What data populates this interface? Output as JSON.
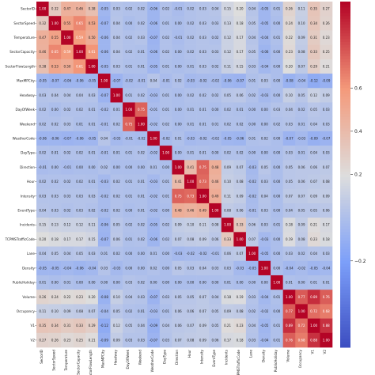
{
  "chart_data": {
    "type": "heatmap",
    "title": "",
    "xlabel": "",
    "ylabel": "",
    "row_labels": [
      "SectorID",
      "SectorSpeed",
      "Temperature",
      "SectorCapacity",
      "SectorFlowLength",
      "MaxMPCity",
      "Headway",
      "DayOfWeek",
      "Weekend",
      "WeatherCode",
      "DayType",
      "Direction",
      "Hour",
      "Intensity",
      "EventType",
      "Incidents",
      "TCPMSTrafficCode",
      "Lane",
      "Density",
      "PublicHoliday",
      "Volume",
      "Occupancy",
      "V1",
      "V2"
    ],
    "col_labels": [
      "SectorID",
      "SectorSpeed",
      "Temperature",
      "SectorCapacity",
      "SectorFlowLength",
      "MaxMPCity",
      "Headway",
      "DayOfWeek",
      "Weekend",
      "WeatherCode",
      "DayType",
      "Direction",
      "Hour",
      "Intensity",
      "EventType",
      "Incidents",
      "TCPMSTrafficCode",
      "Lane",
      "Density",
      "PublicHoliday",
      "Volume",
      "Occupancy",
      "V1",
      "V2"
    ],
    "values": [
      [
        1.0,
        0.32,
        0.47,
        0.46,
        0.38,
        -0.05,
        0.03,
        0.02,
        0.02,
        -0.06,
        0.02,
        -0.01,
        0.02,
        0.03,
        0.04,
        0.15,
        0.2,
        0.04,
        -0.05,
        0.01,
        0.26,
        0.11,
        0.35,
        0.27
      ],
      [
        0.32,
        1.0,
        0.55,
        0.65,
        0.53,
        -0.07,
        0.04,
        0.0,
        0.02,
        -0.06,
        0.01,
        0.0,
        0.02,
        0.03,
        0.03,
        0.13,
        0.18,
        0.05,
        -0.05,
        0.0,
        0.24,
        0.1,
        0.34,
        0.26
      ],
      [
        0.47,
        0.55,
        1.0,
        0.59,
        0.5,
        -0.06,
        0.04,
        0.02,
        0.03,
        -0.07,
        0.02,
        -0.01,
        0.02,
        0.03,
        0.02,
        0.12,
        0.17,
        0.04,
        -0.04,
        0.01,
        0.22,
        0.09,
        0.31,
        0.23
      ],
      [
        0.46,
        0.65,
        0.59,
        1.0,
        0.61,
        -0.06,
        0.04,
        0.02,
        0.01,
        -0.06,
        0.02,
        0.0,
        0.02,
        0.03,
        0.03,
        0.12,
        0.17,
        0.05,
        -0.06,
        0.0,
        0.23,
        0.08,
        0.33,
        0.25
      ],
      [
        0.38,
        0.53,
        0.5,
        0.61,
        1.0,
        -0.05,
        0.03,
        0.01,
        0.01,
        -0.05,
        0.01,
        0.0,
        0.01,
        0.03,
        0.02,
        0.11,
        0.15,
        0.03,
        -0.04,
        0.0,
        0.2,
        0.07,
        0.29,
        0.21
      ],
      [
        -0.05,
        -0.07,
        -0.06,
        -0.06,
        -0.05,
        1.0,
        -0.07,
        -0.02,
        -0.01,
        0.04,
        -0.01,
        0.02,
        -0.03,
        -0.02,
        -0.02,
        -0.06,
        -0.07,
        0.01,
        0.03,
        0.0,
        -0.08,
        -0.04,
        -0.12,
        -0.09
      ],
      [
        0.03,
        0.04,
        0.04,
        0.04,
        0.03,
        -0.07,
        1.0,
        0.01,
        0.02,
        -0.03,
        0.01,
        0.0,
        0.02,
        0.02,
        0.02,
        0.05,
        0.06,
        0.02,
        -0.03,
        0.0,
        0.1,
        0.05,
        0.12,
        0.09
      ],
      [
        0.02,
        0.0,
        0.02,
        0.02,
        0.01,
        -0.02,
        0.01,
        1.0,
        0.75,
        -0.01,
        0.01,
        0.0,
        0.01,
        0.01,
        0.0,
        0.02,
        0.01,
        0.0,
        0.0,
        0.03,
        0.04,
        0.02,
        0.05,
        0.03
      ],
      [
        0.02,
        0.02,
        0.03,
        0.01,
        0.01,
        -0.01,
        0.02,
        0.75,
        1.0,
        -0.02,
        0.02,
        0.0,
        0.01,
        0.01,
        0.01,
        0.02,
        0.02,
        0.0,
        0.0,
        0.02,
        0.03,
        0.01,
        0.04,
        0.03
      ],
      [
        -0.06,
        -0.06,
        -0.07,
        -0.06,
        -0.05,
        0.04,
        -0.03,
        -0.01,
        -0.02,
        1.0,
        -0.02,
        0.01,
        -0.03,
        -0.02,
        -0.02,
        -0.05,
        -0.06,
        0.01,
        0.02,
        0.0,
        -0.07,
        -0.03,
        -0.09,
        -0.07
      ],
      [
        0.02,
        0.01,
        0.02,
        0.02,
        0.01,
        -0.01,
        0.01,
        0.01,
        0.02,
        -0.02,
        1.0,
        0.0,
        0.01,
        0.01,
        0.0,
        0.02,
        0.02,
        0.0,
        0.0,
        0.0,
        0.03,
        0.01,
        0.04,
        0.03
      ],
      [
        -0.01,
        0.0,
        -0.01,
        0.0,
        0.0,
        0.02,
        0.0,
        0.0,
        0.0,
        0.01,
        0.0,
        1.0,
        0.41,
        0.75,
        0.48,
        0.09,
        0.07,
        -0.03,
        0.05,
        0.0,
        0.05,
        0.06,
        0.06,
        0.07
      ],
      [
        0.02,
        0.02,
        0.02,
        0.02,
        0.01,
        -0.03,
        0.02,
        0.01,
        0.01,
        -0.03,
        0.01,
        0.41,
        1.0,
        0.73,
        0.46,
        0.1,
        0.08,
        -0.02,
        0.03,
        0.0,
        0.05,
        0.06,
        0.07,
        0.08
      ],
      [
        0.03,
        0.03,
        0.03,
        0.03,
        0.03,
        -0.02,
        0.02,
        0.01,
        0.01,
        -0.02,
        0.01,
        0.75,
        0.73,
        1.0,
        0.49,
        0.11,
        0.09,
        -0.02,
        0.04,
        0.0,
        0.07,
        0.07,
        0.09,
        0.09
      ],
      [
        0.04,
        0.03,
        0.02,
        0.03,
        0.02,
        -0.02,
        0.02,
        0.0,
        0.01,
        -0.02,
        0.0,
        0.48,
        0.46,
        0.49,
        1.0,
        0.08,
        0.06,
        -0.01,
        0.03,
        0.0,
        0.04,
        0.05,
        0.05,
        0.06
      ],
      [
        0.15,
        0.13,
        0.12,
        0.12,
        0.11,
        -0.06,
        0.05,
        0.02,
        0.02,
        -0.05,
        0.02,
        0.09,
        0.1,
        0.11,
        0.08,
        1.0,
        0.33,
        0.06,
        0.03,
        0.01,
        0.18,
        0.09,
        0.21,
        0.17
      ],
      [
        0.2,
        0.18,
        0.17,
        0.17,
        0.15,
        -0.07,
        0.06,
        0.01,
        0.02,
        -0.06,
        0.02,
        0.07,
        0.08,
        0.09,
        0.06,
        0.33,
        1.0,
        0.07,
        -0.03,
        0.0,
        0.19,
        0.08,
        0.23,
        0.18
      ],
      [
        0.04,
        0.05,
        0.04,
        0.05,
        0.03,
        0.01,
        0.02,
        0.0,
        0.0,
        0.01,
        0.0,
        -0.03,
        -0.02,
        -0.02,
        -0.01,
        0.06,
        0.07,
        1.0,
        -0.05,
        0.0,
        0.03,
        0.02,
        0.04,
        0.03
      ],
      [
        -0.05,
        -0.05,
        -0.04,
        -0.06,
        -0.04,
        0.03,
        -0.03,
        0.0,
        0.0,
        0.02,
        0.0,
        0.05,
        0.03,
        0.04,
        0.03,
        0.03,
        -0.03,
        -0.05,
        1.0,
        0.0,
        -0.04,
        -0.02,
        -0.05,
        -0.04
      ],
      [
        0.01,
        0.0,
        0.01,
        0.0,
        0.0,
        0.0,
        0.0,
        0.03,
        0.02,
        0.0,
        0.0,
        0.0,
        0.0,
        0.0,
        0.0,
        0.01,
        0.0,
        0.0,
        0.0,
        1.0,
        0.01,
        0.0,
        0.01,
        0.01
      ],
      [
        0.26,
        0.24,
        0.22,
        0.23,
        0.2,
        -0.08,
        0.1,
        0.04,
        0.03,
        -0.07,
        0.03,
        0.05,
        0.05,
        0.07,
        0.04,
        0.18,
        0.19,
        0.03,
        -0.04,
        0.01,
        1.0,
        0.77,
        0.89,
        0.76
      ],
      [
        0.11,
        0.1,
        0.09,
        0.08,
        0.07,
        -0.04,
        0.05,
        0.02,
        0.01,
        -0.03,
        0.01,
        0.06,
        0.06,
        0.07,
        0.05,
        0.09,
        0.08,
        0.02,
        -0.02,
        0.0,
        0.77,
        1.0,
        0.72,
        0.68
      ],
      [
        0.35,
        0.34,
        0.31,
        0.33,
        0.29,
        -0.12,
        0.12,
        0.05,
        0.04,
        -0.09,
        0.04,
        0.06,
        0.07,
        0.09,
        0.05,
        0.21,
        0.23,
        0.04,
        -0.05,
        0.01,
        0.89,
        0.72,
        1.0,
        0.88
      ],
      [
        0.27,
        0.26,
        0.23,
        0.25,
        0.21,
        -0.09,
        0.09,
        0.03,
        0.03,
        -0.07,
        0.03,
        0.07,
        0.08,
        0.09,
        0.06,
        0.17,
        0.18,
        0.03,
        -0.04,
        0.01,
        0.76,
        0.68,
        0.88,
        1.0
      ]
    ],
    "vmin": -0.6,
    "vmax": 1.0,
    "colormap": "coolwarm",
    "colorbar_ticks": [
      0.6,
      0.4,
      0.2,
      -0.2
    ],
    "annotated": true,
    "legend": "colorbar-right",
    "grid": false
  }
}
